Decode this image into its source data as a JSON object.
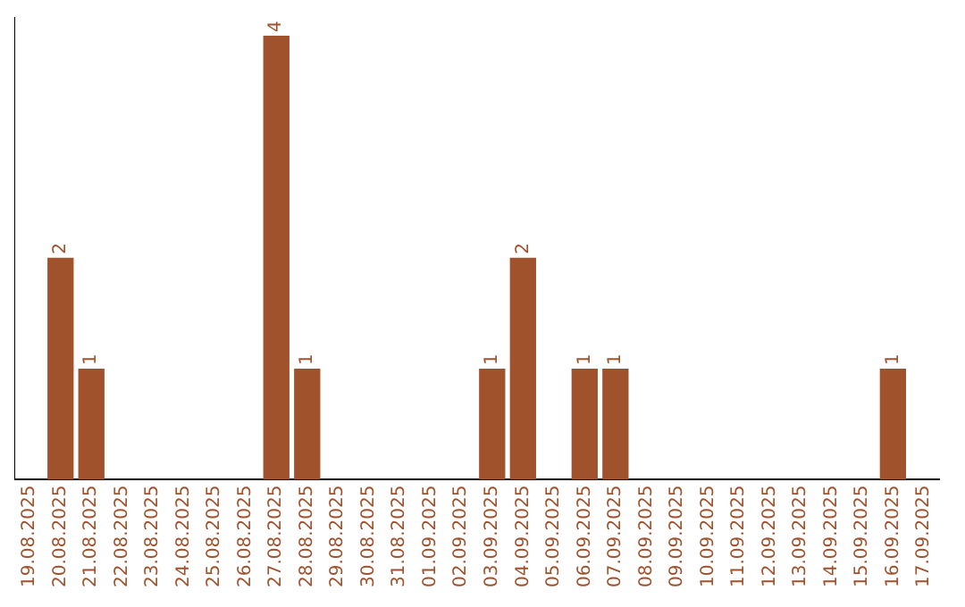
{
  "chart_data": {
    "type": "bar",
    "categories": [
      "19.08.2025",
      "20.08.2025",
      "21.08.2025",
      "22.08.2025",
      "23.08.2025",
      "24.08.2025",
      "25.08.2025",
      "26.08.2025",
      "27.08.2025",
      "28.08.2025",
      "29.08.2025",
      "30.08.2025",
      "31.08.2025",
      "01.09.2025",
      "02.09.2025",
      "03.09.2025",
      "04.09.2025",
      "05.09.2025",
      "06.09.2025",
      "07.09.2025",
      "08.09.2025",
      "09.09.2025",
      "10.09.2025",
      "11.09.2025",
      "12.09.2025",
      "13.09.2025",
      "14.09.2025",
      "15.09.2025",
      "16.09.2025",
      "17.09.2025"
    ],
    "values": [
      0,
      2,
      1,
      0,
      0,
      0,
      0,
      0,
      4,
      1,
      0,
      0,
      0,
      0,
      0,
      1,
      2,
      0,
      1,
      1,
      0,
      0,
      0,
      0,
      0,
      0,
      0,
      0,
      1,
      0
    ],
    "value_labels": [
      null,
      "2",
      "1",
      null,
      null,
      null,
      null,
      null,
      "4",
      "1",
      null,
      null,
      null,
      null,
      null,
      "1",
      "2",
      null,
      "1",
      "1",
      null,
      null,
      null,
      null,
      null,
      null,
      null,
      null,
      "1",
      null
    ],
    "color": "#a0522d"
  }
}
